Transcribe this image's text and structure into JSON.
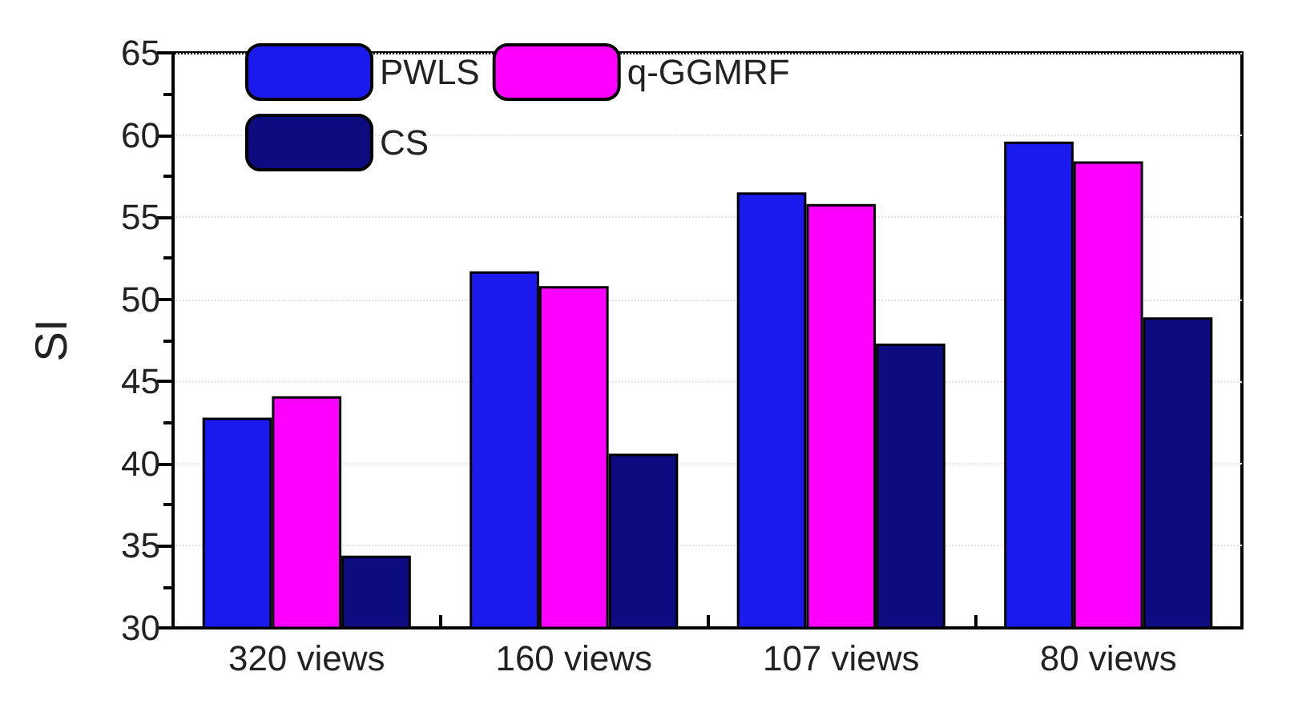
{
  "chart_data": {
    "type": "bar",
    "ylabel": "SI",
    "categories": [
      "320 views",
      "160 views",
      "107 views",
      "80 views"
    ],
    "series": [
      {
        "name": "PWLS",
        "color": "#1a1aee",
        "values": [
          42.8,
          51.7,
          56.5,
          59.6
        ]
      },
      {
        "name": "q-GGMRF",
        "color": "#ff00ff",
        "values": [
          44.1,
          50.8,
          55.8,
          58.4
        ]
      },
      {
        "name": "CS",
        "color": "#0c0c80",
        "values": [
          34.4,
          40.6,
          47.3,
          48.9
        ]
      }
    ],
    "ylim": [
      30,
      65
    ],
    "yticks": [
      30,
      35,
      40,
      45,
      50,
      55,
      60,
      65
    ],
    "grid": "y",
    "legend": "top left"
  }
}
